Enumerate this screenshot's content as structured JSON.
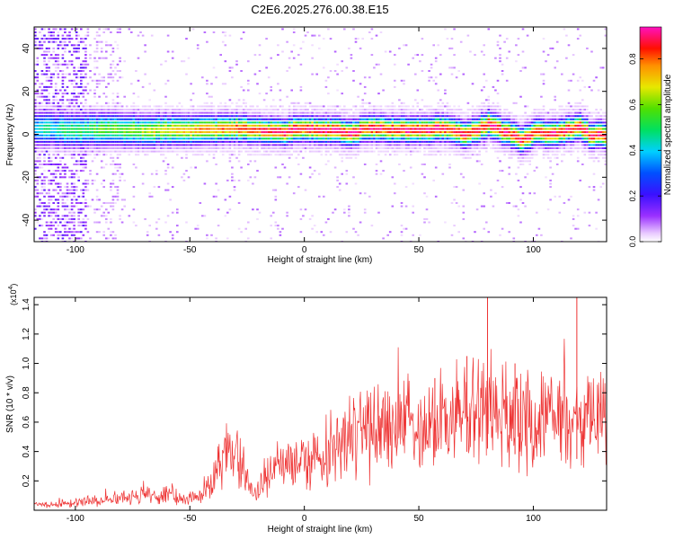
{
  "figure": {
    "title": "C2E6.2025.276.00.38.E15"
  },
  "chart_data": [
    {
      "type": "heatmap",
      "xlabel": "Height of straight line (km)",
      "ylabel": "Frequency (Hz)",
      "xlim": [
        -118,
        132
      ],
      "ylim": [
        -50,
        50
      ],
      "xticks": [
        -100,
        -50,
        0,
        50,
        100
      ],
      "yticks": [
        -40,
        -20,
        0,
        20,
        40
      ],
      "colorbar": {
        "label": "Normalized spectral amplitude",
        "range": [
          0,
          0.94
        ],
        "ticks": [
          "0.0",
          "0.2",
          "0.4",
          "0.6",
          "0.8"
        ],
        "tick_values": [
          0,
          0.2,
          0.4,
          0.6,
          0.8
        ],
        "colormap": "rainbow: white, violet, purple, blue, cyan, green, yellow, orange, red, magenta"
      },
      "ridge": {
        "x": [
          -118,
          -100,
          -90,
          -80,
          -70,
          -60,
          -50,
          -40,
          -30,
          -20,
          -10,
          0,
          10,
          20,
          30,
          40,
          50,
          60,
          70,
          75,
          80,
          85,
          90,
          95,
          100,
          110,
          115,
          120,
          125,
          132
        ],
        "y": [
          3,
          2,
          2,
          2,
          2,
          2,
          2,
          2,
          3,
          2,
          1,
          3,
          2,
          1,
          3,
          2,
          2,
          3,
          0,
          2,
          5,
          2,
          0,
          -3,
          1,
          0,
          2,
          4,
          -1,
          0
        ]
      }
    },
    {
      "type": "line",
      "xlabel": "Height of straight line (km)",
      "ylabel": "SNR (10 * v/v)",
      "y_multiplier": "(x10",
      "y_multiplier_exp": "4",
      "xlim": [
        -118,
        132
      ],
      "ylim": [
        0,
        1.45
      ],
      "xticks": [
        -100,
        -50,
        0,
        50,
        100
      ],
      "yticks": [
        "0.2",
        "0.4",
        "0.6",
        "0.8",
        "1.0",
        "1.2",
        "1.4"
      ],
      "ytick_values": [
        0.2,
        0.4,
        0.6,
        0.8,
        1.0,
        1.2,
        1.4
      ],
      "color": "#ee3333",
      "series": [
        {
          "x": [
            -118,
            -110,
            -100,
            -90,
            -80,
            -70,
            -60,
            -50,
            -45,
            -40,
            -37,
            -34,
            -30,
            -27,
            -24,
            -20,
            -15,
            -10,
            -5,
            0,
            5,
            10,
            15,
            20,
            30,
            40,
            50,
            60,
            70,
            75,
            80,
            85,
            90,
            100,
            110,
            120,
            125,
            132
          ],
          "values": [
            0.04,
            0.04,
            0.05,
            0.07,
            0.09,
            0.11,
            0.1,
            0.08,
            0.1,
            0.18,
            0.34,
            0.4,
            0.36,
            0.3,
            0.16,
            0.12,
            0.25,
            0.3,
            0.33,
            0.35,
            0.36,
            0.4,
            0.5,
            0.5,
            0.52,
            0.58,
            0.6,
            0.6,
            0.66,
            0.68,
            0.7,
            0.66,
            0.64,
            0.62,
            0.6,
            0.58,
            0.6,
            0.62
          ]
        }
      ],
      "spikes": [
        {
          "x": 80,
          "y": 1.45
        },
        {
          "x": 119,
          "y": 1.45
        },
        {
          "x": 71,
          "y": 1.05
        },
        {
          "x": 92,
          "y": 1.0
        },
        {
          "x": 57,
          "y": 0.9
        }
      ]
    }
  ]
}
